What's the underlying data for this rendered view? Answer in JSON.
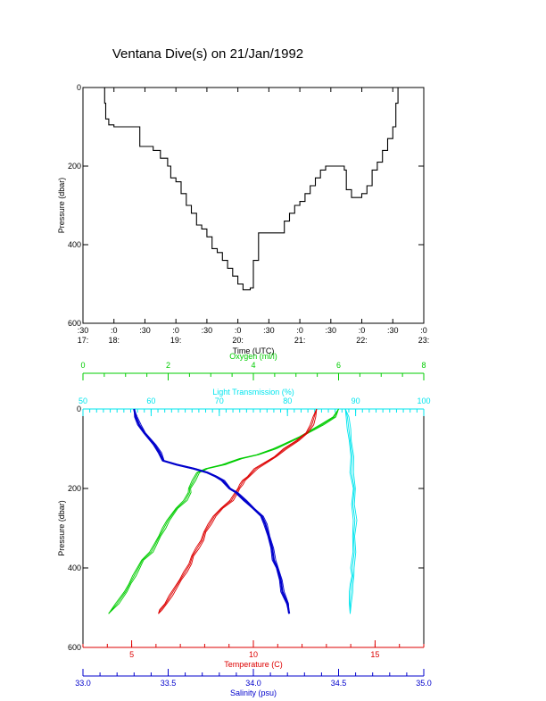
{
  "page_title": "Ventana Dive(s) on 21/Jan/1992",
  "chart_data": [
    {
      "type": "line",
      "xlabel": "Time (UTC)",
      "ylabel": "Pressure (dbar)",
      "xlim": [
        "17:30",
        "23:00"
      ],
      "ylim": [
        600,
        0
      ],
      "x_ticks": [
        {
          "top": ":30",
          "bottom": "17:"
        },
        {
          "top": ":0",
          "bottom": "18:"
        },
        {
          "top": ":30",
          "bottom": ""
        },
        {
          "top": ":0",
          "bottom": "19:"
        },
        {
          "top": ":30",
          "bottom": ""
        },
        {
          "top": ":0",
          "bottom": "20:"
        },
        {
          "top": ":30",
          "bottom": ""
        },
        {
          "top": ":0",
          "bottom": "21:"
        },
        {
          "top": ":30",
          "bottom": ""
        },
        {
          "top": ":0",
          "bottom": "22:"
        },
        {
          "top": ":30",
          "bottom": ""
        },
        {
          "top": ":0",
          "bottom": "23:"
        }
      ],
      "y_ticks": [
        "0",
        "200",
        "400",
        "600"
      ],
      "series": [
        {
          "color": "#000000",
          "x": [
            "17:50",
            "17:51",
            "17:52",
            "17:55",
            "18:00",
            "18:10",
            "18:15",
            "18:25",
            "18:35",
            "18:38",
            "18:45",
            "18:52",
            "18:55",
            "19:00",
            "19:05",
            "19:10",
            "19:15",
            "19:20",
            "19:25",
            "19:30",
            "19:35",
            "19:40",
            "19:45",
            "19:50",
            "19:55",
            "20:00",
            "20:05",
            "20:10",
            "20:12",
            "20:15",
            "20:20",
            "20:25",
            "20:30",
            "20:40",
            "20:45",
            "20:50",
            "20:55",
            "21:00",
            "21:05",
            "21:10",
            "21:15",
            "21:20",
            "21:25",
            "21:35",
            "21:43",
            "21:45",
            "21:50",
            "21:55",
            "22:00",
            "22:05",
            "22:10",
            "22:15",
            "22:20",
            "22:25",
            "22:30",
            "22:33",
            "22:35"
          ],
          "y": [
            0,
            40,
            80,
            95,
            100,
            100,
            100,
            150,
            150,
            160,
            180,
            200,
            230,
            240,
            270,
            300,
            320,
            350,
            360,
            380,
            410,
            420,
            440,
            460,
            480,
            500,
            515,
            515,
            510,
            440,
            370,
            370,
            370,
            370,
            340,
            320,
            300,
            290,
            270,
            250,
            230,
            210,
            200,
            200,
            210,
            260,
            280,
            280,
            270,
            250,
            210,
            190,
            160,
            130,
            100,
            40,
            0
          ]
        }
      ]
    },
    {
      "type": "line",
      "ylabel": "Pressure (dbar)",
      "ylim": [
        600,
        0
      ],
      "y_ticks": [
        "0",
        "200",
        "400",
        "600"
      ],
      "axes": [
        {
          "label": "Oxygen (ml/l)",
          "color": "#00cc00",
          "position": "top",
          "range": [
            0,
            8
          ],
          "ticks": [
            "0",
            "2",
            "4",
            "6",
            "8"
          ]
        },
        {
          "label": "Light Transmission (%)",
          "color": "#00e5ee",
          "position": "top",
          "range": [
            50,
            100
          ],
          "ticks": [
            "50",
            "60",
            "70",
            "80",
            "90",
            "100"
          ]
        },
        {
          "label": "Temperature (C)",
          "color": "#dd0000",
          "position": "bottom",
          "range": [
            3,
            17
          ],
          "ticks": [
            "5",
            "10",
            "15"
          ]
        },
        {
          "label": "Salinity (psu)",
          "color": "#0000cc",
          "position": "bottom",
          "range": [
            33.0,
            35.0
          ],
          "ticks": [
            "33.0",
            "33.5",
            "34.0",
            "34.5",
            "35.0"
          ]
        }
      ],
      "series": [
        {
          "axis": 0,
          "color": "#00cc00",
          "x": [
            6.0,
            5.9,
            5.6,
            5.1,
            4.7,
            4.5,
            4.1,
            3.7,
            3.3,
            2.9,
            2.7,
            2.6,
            2.5,
            2.5,
            2.4,
            2.2,
            2.0,
            1.9,
            1.8,
            1.7,
            1.6,
            1.4,
            1.3,
            1.2,
            1.1,
            1.0,
            0.8,
            0.6
          ],
          "y": [
            0,
            20,
            40,
            70,
            90,
            100,
            115,
            125,
            140,
            150,
            160,
            180,
            200,
            210,
            230,
            250,
            280,
            300,
            320,
            340,
            360,
            380,
            400,
            420,
            440,
            460,
            490,
            515
          ]
        },
        {
          "axis": 1,
          "color": "#00e5ee",
          "x": [
            88.5,
            88.8,
            89.0,
            89.2,
            89.5,
            89.4,
            89.8,
            89.6,
            89.9,
            89.7,
            89.8,
            89.5,
            89.6,
            89.4,
            89.3,
            89.2,
            89.2
          ],
          "y": [
            0,
            20,
            50,
            80,
            120,
            160,
            200,
            240,
            280,
            320,
            360,
            400,
            420,
            440,
            460,
            490,
            515
          ]
        },
        {
          "axis": 2,
          "color": "#dd0000",
          "x": [
            12.6,
            12.5,
            12.4,
            12.2,
            11.8,
            11.3,
            10.9,
            10.5,
            10.1,
            9.8,
            9.6,
            9.5,
            9.4,
            9.3,
            9.1,
            8.7,
            8.4,
            8.2,
            8.0,
            7.9,
            7.7,
            7.5,
            7.4,
            7.2,
            7.0,
            6.8,
            6.6,
            6.4,
            6.2,
            6.1
          ],
          "y": [
            0,
            20,
            40,
            60,
            80,
            100,
            120,
            135,
            150,
            170,
            180,
            190,
            200,
            210,
            230,
            250,
            270,
            290,
            310,
            330,
            350,
            370,
            390,
            410,
            430,
            450,
            470,
            490,
            505,
            515
          ]
        },
        {
          "axis": 3,
          "color": "#0000cc",
          "x": [
            33.3,
            33.31,
            33.33,
            33.36,
            33.42,
            33.45,
            33.47,
            33.55,
            33.65,
            33.73,
            33.78,
            33.82,
            33.86,
            33.9,
            33.95,
            34.0,
            34.05,
            34.07,
            34.09,
            34.11,
            34.12,
            34.14,
            34.16,
            34.17,
            34.2,
            34.21
          ],
          "y": [
            0,
            20,
            40,
            60,
            90,
            110,
            130,
            140,
            150,
            160,
            170,
            180,
            200,
            210,
            230,
            250,
            270,
            290,
            320,
            350,
            380,
            400,
            430,
            460,
            490,
            515
          ]
        }
      ]
    }
  ]
}
